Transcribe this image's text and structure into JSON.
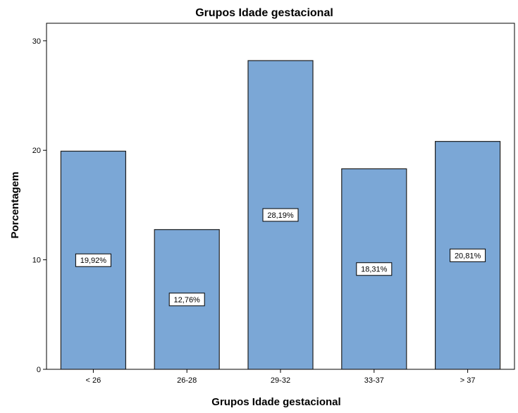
{
  "chart_data": {
    "type": "bar",
    "title": "Grupos Idade gestacional",
    "xlabel": "Grupos Idade gestacional",
    "ylabel": "Porcentagem",
    "categories": [
      "< 26",
      "26-28",
      "29-32",
      "33-37",
      "> 37"
    ],
    "values": [
      19.92,
      12.76,
      28.19,
      18.31,
      20.81
    ],
    "data_labels": [
      "19,92%",
      "12,76%",
      "28,19%",
      "18,31%",
      "20,81%"
    ],
    "ylim": [
      0,
      31.6
    ],
    "yticks": [
      0,
      10,
      20,
      30
    ],
    "grid": false,
    "legend": "none",
    "colors": {
      "bar_fill": "#7BA7D6",
      "bar_stroke": "#1F1F1F",
      "axis": "#000000",
      "label_box": "#FFFFFF"
    }
  }
}
